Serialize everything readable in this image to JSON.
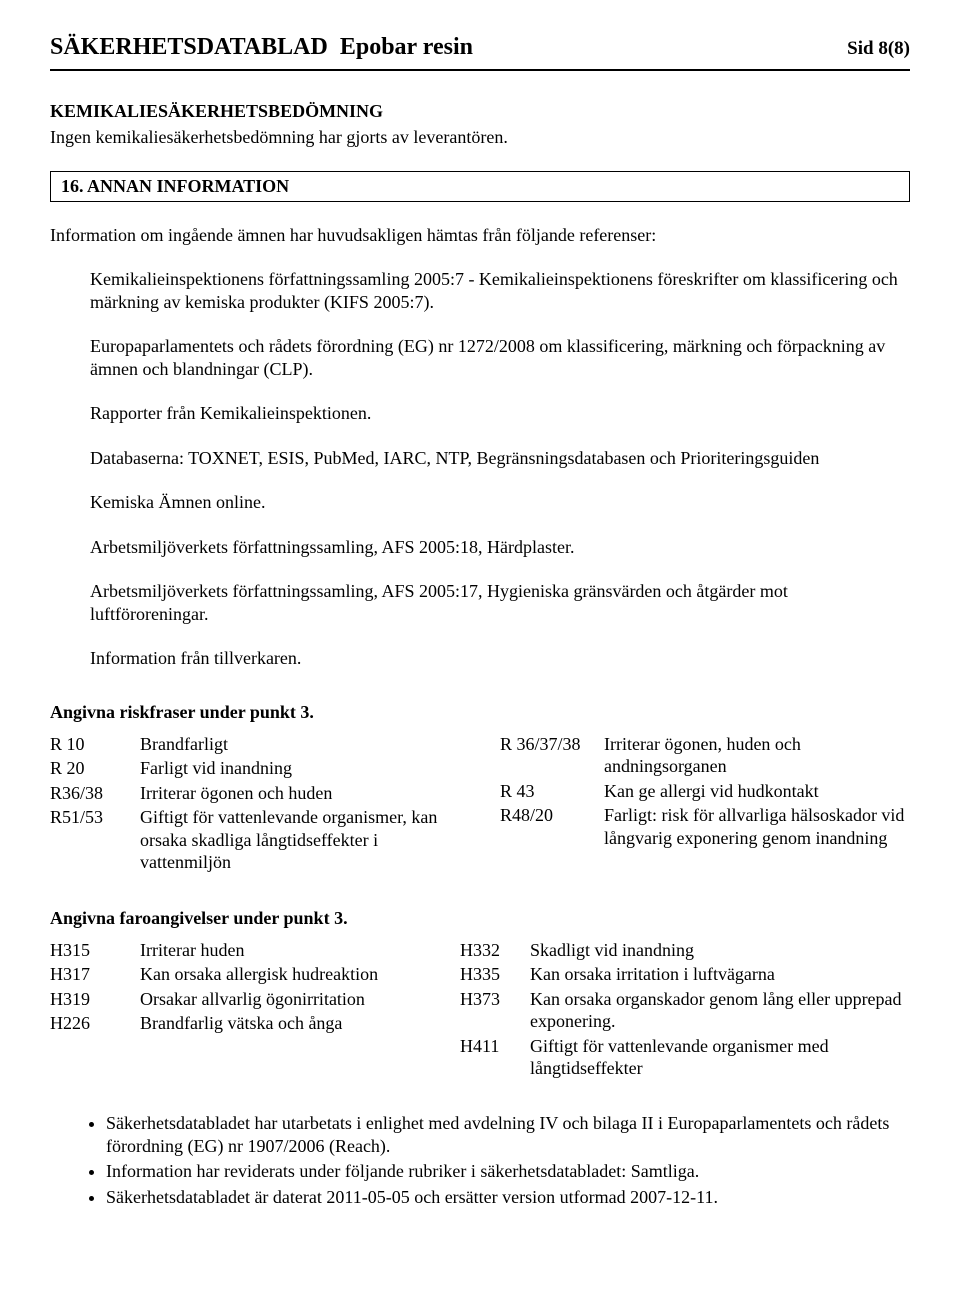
{
  "header": {
    "title_left": "SÄKERHETSDATABLAD",
    "title_product": "Epobar resin",
    "page_label": "Sid 8(8)"
  },
  "s15": {
    "heading": "KEMIKALIESÄKERHETSBEDÖMNING",
    "text": "Ingen kemikaliesäkerhetsbedömning har gjorts av leverantören."
  },
  "s16": {
    "box_title": "16.   ANNAN INFORMATION",
    "intro": "Information om ingående ämnen har huvudsakligen hämtas från följande referenser:",
    "refs": [
      "Kemikalieinspektionens författningssamling 2005:7 - Kemikalieinspektionens föreskrifter om klassificering och märkning av kemiska produkter (KIFS 2005:7).",
      "Europaparlamentets och rådets förordning (EG) nr 1272/2008 om klassificering, märkning och förpackning av ämnen och blandningar (CLP).",
      "Rapporter från Kemikalieinspektionen.",
      "Databaserna: TOXNET, ESIS, PubMed, IARC, NTP, Begränsningsdatabasen och Prioriteringsguiden",
      "Kemiska Ämnen online.",
      "Arbetsmiljöverkets författningssamling, AFS 2005:18, Härdplaster.",
      "Arbetsmiljöverkets författningssamling, AFS 2005:17, Hygieniska gränsvärden och åtgärder mot luftföroreningar.",
      "Information från tillverkaren."
    ]
  },
  "risk": {
    "heading": "Angivna riskfraser under punkt 3.",
    "left": [
      {
        "code": "R 10",
        "desc": "Brandfarligt"
      },
      {
        "code": "R 20",
        "desc": "Farligt vid inandning"
      },
      {
        "code": "R36/38",
        "desc": "Irriterar ögonen och huden"
      },
      {
        "code": "R51/53",
        "desc": "Giftigt för vattenlevande organismer, kan orsaka skadliga långtidseffekter i vattenmiljön"
      }
    ],
    "right": [
      {
        "code": "R 36/37/38",
        "desc": "Irriterar ögonen, huden och andningsorganen"
      },
      {
        "code": "R 43",
        "desc": "Kan ge allergi vid hudkontakt"
      },
      {
        "code": "R48/20",
        "desc": "Farligt: risk för allvarliga hälsoskador vid långvarig exponering genom inandning"
      }
    ]
  },
  "hazard": {
    "heading": "Angivna faroangivelser under punkt 3.",
    "left": [
      {
        "code": "H315",
        "desc": "Irriterar huden"
      },
      {
        "code": "H317",
        "desc": "Kan orsaka allergisk hudreaktion"
      },
      {
        "code": "H319",
        "desc": "Orsakar allvarlig ögonirritation"
      },
      {
        "code": "H226",
        "desc": "Brandfarlig vätska och ånga"
      }
    ],
    "right": [
      {
        "code": "H332",
        "desc": "Skadligt vid inandning"
      },
      {
        "code": "H335",
        "desc": "Kan orsaka irritation i luftvägarna"
      },
      {
        "code": "H373",
        "desc": "Kan orsaka organskador genom lång eller upprepad exponering."
      },
      {
        "code": "H411",
        "desc": "Giftigt för vattenlevande organismer med långtidseffekter"
      }
    ]
  },
  "bullets": [
    "Säkerhetsdatabladet har utarbetats i enlighet med avdelning IV och bilaga II i Europaparlamentets och rådets förordning (EG) nr 1907/2006 (Reach).",
    "Information har reviderats under följande rubriker i säkerhetsdatabladet: Samtliga.",
    "Säkerhetsdatabladet är daterat 2011-05-05 och ersätter version utformad 2007-12-11."
  ]
}
